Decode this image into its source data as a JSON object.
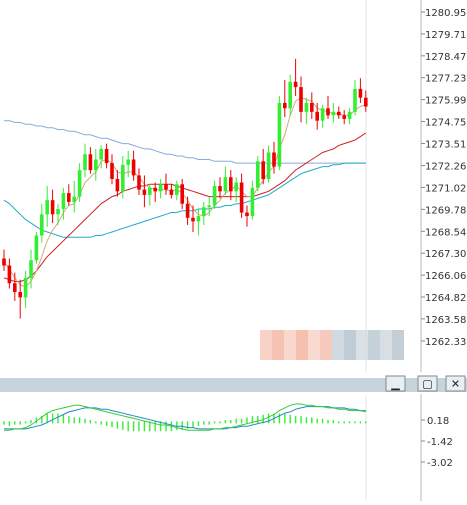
{
  "colors": {
    "up": "#33ee33",
    "down": "#ee0000",
    "ma_fast": "#d4a874",
    "ma_mid": "#cc2222",
    "ma_slow": "#22aacc",
    "ma_long": "#88aadd",
    "macd_line": "#33cc33",
    "signal_line": "#2288cc",
    "hist": "#33ee33",
    "divider_bar": "#c8d4dc"
  },
  "panel_buttons": [
    {
      "name": "minimize-icon",
      "glyph": "▁"
    },
    {
      "name": "maximize-icon",
      "glyph": "▢"
    },
    {
      "name": "close-icon",
      "glyph": "✕"
    }
  ],
  "chart_data": [
    {
      "type": "candlestick",
      "yticks": [
        "1280.95",
        "1279.71",
        "1278.47",
        "1277.23",
        "1275.99",
        "1274.75",
        "1273.51",
        "1272.26",
        "1271.02",
        "1269.78",
        "1268.54",
        "1267.30",
        "1266.06",
        "1264.82",
        "1263.58",
        "1262.33"
      ],
      "ylim": [
        1262.33,
        1280.95
      ],
      "candles": [
        [
          1267.0,
          1267.5,
          1266.3,
          1266.6
        ],
        [
          1266.6,
          1267.0,
          1265.3,
          1265.6
        ],
        [
          1265.6,
          1266.2,
          1264.6,
          1265.1
        ],
        [
          1265.1,
          1265.8,
          1263.6,
          1264.8
        ],
        [
          1264.8,
          1266.3,
          1264.2,
          1265.9
        ],
        [
          1265.9,
          1267.5,
          1265.3,
          1266.9
        ],
        [
          1266.9,
          1268.5,
          1266.7,
          1268.3
        ],
        [
          1268.3,
          1270.1,
          1267.9,
          1269.5
        ],
        [
          1269.5,
          1271.1,
          1268.8,
          1270.3
        ],
        [
          1270.3,
          1270.9,
          1269.0,
          1269.5
        ],
        [
          1269.5,
          1270.1,
          1268.9,
          1269.8
        ],
        [
          1269.8,
          1271.0,
          1269.2,
          1270.7
        ],
        [
          1270.7,
          1271.2,
          1270.0,
          1270.2
        ],
        [
          1270.2,
          1271.4,
          1269.6,
          1270.5
        ],
        [
          1270.5,
          1272.4,
          1270.2,
          1272.0
        ],
        [
          1272.0,
          1273.5,
          1271.6,
          1272.9
        ],
        [
          1272.9,
          1273.3,
          1271.8,
          1272.0
        ],
        [
          1272.0,
          1273.2,
          1271.4,
          1272.6
        ],
        [
          1272.6,
          1273.4,
          1272.1,
          1273.2
        ],
        [
          1273.2,
          1273.5,
          1272.1,
          1272.4
        ],
        [
          1272.4,
          1272.9,
          1271.2,
          1271.5
        ],
        [
          1271.5,
          1272.0,
          1270.5,
          1270.8
        ],
        [
          1270.8,
          1272.8,
          1270.4,
          1272.3
        ],
        [
          1272.3,
          1273.1,
          1271.6,
          1272.6
        ],
        [
          1272.6,
          1273.1,
          1271.4,
          1271.7
        ],
        [
          1271.7,
          1272.1,
          1270.6,
          1270.9
        ],
        [
          1270.9,
          1271.7,
          1269.9,
          1270.6
        ],
        [
          1270.6,
          1271.2,
          1270.0,
          1271.0
        ],
        [
          1271.0,
          1271.3,
          1270.2,
          1270.8
        ],
        [
          1270.8,
          1271.5,
          1270.4,
          1271.2
        ],
        [
          1271.2,
          1271.8,
          1270.6,
          1270.9
        ],
        [
          1270.9,
          1271.2,
          1270.4,
          1270.6
        ],
        [
          1270.6,
          1271.4,
          1270.3,
          1271.2
        ],
        [
          1271.2,
          1271.5,
          1269.8,
          1270.1
        ],
        [
          1270.1,
          1270.5,
          1268.9,
          1269.3
        ],
        [
          1269.3,
          1270.0,
          1268.5,
          1269.1
        ],
        [
          1269.1,
          1269.8,
          1268.3,
          1269.4
        ],
        [
          1269.4,
          1270.2,
          1268.9,
          1269.9
        ],
        [
          1269.9,
          1270.5,
          1269.4,
          1270.0
        ],
        [
          1270.0,
          1271.4,
          1269.8,
          1271.1
        ],
        [
          1271.1,
          1271.6,
          1270.4,
          1270.8
        ],
        [
          1270.8,
          1272.2,
          1270.6,
          1271.6
        ],
        [
          1271.6,
          1272.0,
          1270.3,
          1270.8
        ],
        [
          1270.8,
          1271.6,
          1270.2,
          1271.3
        ],
        [
          1271.3,
          1271.8,
          1269.3,
          1269.6
        ],
        [
          1269.6,
          1270.0,
          1268.8,
          1269.4
        ],
        [
          1269.4,
          1271.4,
          1269.2,
          1271.0
        ],
        [
          1271.0,
          1272.8,
          1270.8,
          1272.5
        ],
        [
          1272.5,
          1273.2,
          1271.2,
          1271.5
        ],
        [
          1271.5,
          1273.4,
          1271.3,
          1273.0
        ],
        [
          1273.0,
          1273.6,
          1271.8,
          1272.2
        ],
        [
          1272.2,
          1276.2,
          1272.0,
          1275.8
        ],
        [
          1275.8,
          1277.1,
          1275.0,
          1275.5
        ],
        [
          1275.5,
          1277.4,
          1275.1,
          1277.0
        ],
        [
          1277.0,
          1278.3,
          1276.2,
          1276.7
        ],
        [
          1276.7,
          1277.3,
          1274.7,
          1275.3
        ],
        [
          1275.3,
          1276.1,
          1274.6,
          1275.8
        ],
        [
          1275.8,
          1276.4,
          1274.9,
          1275.3
        ],
        [
          1275.3,
          1275.8,
          1274.3,
          1274.8
        ],
        [
          1274.8,
          1275.7,
          1274.4,
          1275.5
        ],
        [
          1275.5,
          1276.2,
          1274.9,
          1275.1
        ],
        [
          1275.1,
          1275.8,
          1274.7,
          1275.3
        ],
        [
          1275.3,
          1275.6,
          1274.9,
          1275.1
        ],
        [
          1275.1,
          1275.4,
          1274.6,
          1274.9
        ],
        [
          1274.9,
          1275.5,
          1274.6,
          1275.3
        ],
        [
          1275.3,
          1277.1,
          1275.1,
          1276.6
        ],
        [
          1276.6,
          1277.2,
          1275.8,
          1276.1
        ],
        [
          1276.1,
          1276.5,
          1275.3,
          1275.6
        ]
      ],
      "ma_fast": [
        1266.8,
        1266.4,
        1265.9,
        1265.5,
        1265.4,
        1265.7,
        1266.3,
        1267.1,
        1268.0,
        1268.6,
        1269.0,
        1269.6,
        1270.0,
        1270.1,
        1270.6,
        1271.3,
        1271.6,
        1271.9,
        1272.5,
        1272.6,
        1272.4,
        1271.9,
        1271.8,
        1271.9,
        1271.9,
        1271.6,
        1271.2,
        1271.0,
        1270.9,
        1270.9,
        1270.9,
        1270.8,
        1270.9,
        1270.7,
        1270.3,
        1269.8,
        1269.5,
        1269.4,
        1269.6,
        1270.0,
        1270.3,
        1270.7,
        1270.9,
        1271.1,
        1270.8,
        1270.5,
        1270.5,
        1271.0,
        1271.4,
        1271.9,
        1272.2,
        1273.2,
        1274.0,
        1275.1,
        1275.9,
        1276.1,
        1276.0,
        1275.9,
        1275.5,
        1275.4,
        1275.3,
        1275.2,
        1275.2,
        1275.1,
        1275.1,
        1275.4,
        1275.6,
        1275.7
      ],
      "ma_mid": [
        1265.9,
        1265.8,
        1265.7,
        1265.7,
        1265.8,
        1266.0,
        1266.3,
        1266.7,
        1267.1,
        1267.4,
        1267.7,
        1268.0,
        1268.3,
        1268.6,
        1268.9,
        1269.2,
        1269.5,
        1269.8,
        1270.1,
        1270.3,
        1270.5,
        1270.6,
        1270.8,
        1270.9,
        1271.0,
        1271.1,
        1271.1,
        1271.2,
        1271.2,
        1271.2,
        1271.2,
        1271.2,
        1271.1,
        1271.0,
        1270.9,
        1270.8,
        1270.7,
        1270.6,
        1270.5,
        1270.5,
        1270.5,
        1270.5,
        1270.5,
        1270.5,
        1270.5,
        1270.5,
        1270.5,
        1270.6,
        1270.7,
        1270.8,
        1271.0,
        1271.2,
        1271.4,
        1271.7,
        1272.0,
        1272.2,
        1272.4,
        1272.6,
        1272.8,
        1273.0,
        1273.1,
        1273.2,
        1273.4,
        1273.5,
        1273.6,
        1273.7,
        1273.9,
        1274.1
      ],
      "ma_slow": [
        1270.3,
        1270.1,
        1269.8,
        1269.5,
        1269.2,
        1269.0,
        1268.8,
        1268.6,
        1268.5,
        1268.4,
        1268.3,
        1268.2,
        1268.2,
        1268.2,
        1268.2,
        1268.2,
        1268.2,
        1268.3,
        1268.3,
        1268.4,
        1268.5,
        1268.6,
        1268.7,
        1268.8,
        1268.9,
        1269.0,
        1269.1,
        1269.2,
        1269.3,
        1269.4,
        1269.5,
        1269.6,
        1269.6,
        1269.7,
        1269.7,
        1269.7,
        1269.8,
        1269.8,
        1269.8,
        1269.9,
        1269.9,
        1270.0,
        1270.0,
        1270.1,
        1270.1,
        1270.2,
        1270.3,
        1270.4,
        1270.5,
        1270.6,
        1270.8,
        1271.0,
        1271.2,
        1271.4,
        1271.6,
        1271.8,
        1271.9,
        1272.0,
        1272.1,
        1272.2,
        1272.2,
        1272.3,
        1272.3,
        1272.4,
        1272.4,
        1272.4,
        1272.4,
        1272.4
      ],
      "ma_long": [
        1274.8,
        1274.8,
        1274.7,
        1274.7,
        1274.6,
        1274.6,
        1274.5,
        1274.5,
        1274.4,
        1274.4,
        1274.3,
        1274.3,
        1274.2,
        1274.2,
        1274.1,
        1274.0,
        1274.0,
        1273.9,
        1273.8,
        1273.8,
        1273.7,
        1273.6,
        1273.5,
        1273.5,
        1273.4,
        1273.3,
        1273.2,
        1273.2,
        1273.1,
        1273.0,
        1272.9,
        1272.9,
        1272.8,
        1272.8,
        1272.7,
        1272.7,
        1272.6,
        1272.6,
        1272.6,
        1272.5,
        1272.5,
        1272.5,
        1272.5,
        1272.4,
        1272.4,
        1272.4,
        1272.4,
        1272.4,
        1272.4,
        1272.4,
        1272.4,
        1272.4,
        1272.4,
        1272.4,
        1272.4,
        1272.4,
        1272.4,
        1272.4,
        1272.4,
        1272.4,
        1272.4,
        1272.4,
        1272.4,
        1272.4,
        1272.4,
        1272.4,
        1272.4,
        1272.4
      ]
    },
    {
      "type": "macd",
      "yticks": [
        "0.18",
        "-1.42",
        "-3.02"
      ],
      "ylim": [
        -3.02,
        1.4
      ],
      "macd": [
        -0.6,
        -0.6,
        -0.5,
        -0.5,
        -0.4,
        -0.2,
        0.1,
        0.4,
        0.7,
        0.9,
        1.0,
        1.1,
        1.2,
        1.3,
        1.3,
        1.2,
        1.1,
        1.0,
        0.9,
        0.8,
        0.7,
        0.6,
        0.5,
        0.4,
        0.3,
        0.2,
        0.1,
        0.0,
        -0.1,
        -0.2,
        -0.2,
        -0.3,
        -0.4,
        -0.5,
        -0.6,
        -0.6,
        -0.6,
        -0.6,
        -0.6,
        -0.5,
        -0.5,
        -0.4,
        -0.4,
        -0.3,
        -0.2,
        -0.1,
        0.0,
        0.1,
        0.2,
        0.4,
        0.6,
        0.9,
        1.1,
        1.3,
        1.4,
        1.4,
        1.3,
        1.3,
        1.2,
        1.2,
        1.1,
        1.1,
        1.0,
        1.0,
        0.9,
        0.9,
        0.9,
        0.8
      ],
      "signal": [
        -0.5,
        -0.5,
        -0.5,
        -0.5,
        -0.5,
        -0.4,
        -0.3,
        -0.2,
        0.0,
        0.2,
        0.4,
        0.6,
        0.8,
        0.9,
        1.0,
        1.1,
        1.1,
        1.1,
        1.0,
        1.0,
        0.9,
        0.8,
        0.7,
        0.6,
        0.5,
        0.4,
        0.3,
        0.2,
        0.1,
        0.0,
        -0.1,
        -0.2,
        -0.3,
        -0.3,
        -0.4,
        -0.4,
        -0.5,
        -0.5,
        -0.5,
        -0.5,
        -0.5,
        -0.5,
        -0.4,
        -0.4,
        -0.3,
        -0.3,
        -0.2,
        -0.1,
        0.0,
        0.1,
        0.3,
        0.5,
        0.7,
        0.8,
        1.0,
        1.1,
        1.2,
        1.2,
        1.2,
        1.2,
        1.2,
        1.1,
        1.1,
        1.1,
        1.0,
        1.0,
        0.9,
        0.9
      ],
      "hist": [
        -0.1,
        -0.2,
        -0.1,
        -0.1,
        0.0,
        0.1,
        0.3,
        0.4,
        0.6,
        0.6,
        0.6,
        0.5,
        0.4,
        0.3,
        0.3,
        0.2,
        0.1,
        0.0,
        -0.1,
        -0.2,
        -0.3,
        -0.4,
        -0.5,
        -0.6,
        -0.6,
        -0.6,
        -0.6,
        -0.6,
        -0.6,
        -0.6,
        -0.6,
        -0.6,
        -0.5,
        -0.5,
        -0.4,
        -0.3,
        -0.2,
        -0.1,
        -0.1,
        0.0,
        0.0,
        0.1,
        0.1,
        0.2,
        0.2,
        0.3,
        0.4,
        0.4,
        0.5,
        0.6,
        0.6,
        0.6,
        0.6,
        0.5,
        0.4,
        0.4,
        0.3,
        0.3,
        0.2,
        0.2,
        0.1,
        0.1,
        0.0,
        0.0,
        0.0,
        0.0,
        0.0,
        0.0
      ]
    }
  ]
}
